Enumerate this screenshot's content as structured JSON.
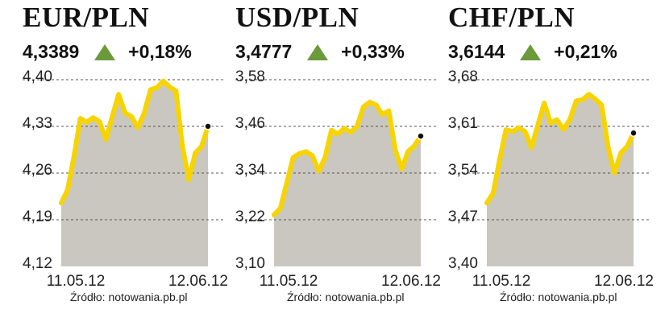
{
  "source_label": "Źródło: notowania.pb.pl",
  "colors": {
    "line": "#f7d400",
    "area": "#c9c7c0",
    "grid": "#555555",
    "arrow_up": "#6a9a3a",
    "dot": "#111111"
  },
  "chart_data": [
    {
      "type": "area",
      "title": "EUR/PLN",
      "quote": {
        "value": "4,3389",
        "direction": "up",
        "change": "+0,18%"
      },
      "x_labels": [
        "11.05.12",
        "12.06.12"
      ],
      "y_ticks": [
        "4,40",
        "4,33",
        "4,26",
        "4,19",
        "4,12"
      ],
      "ylim": [
        4.12,
        4.4
      ],
      "grid": true,
      "x": [
        "11.05.12",
        "14.05.12",
        "15.05.12",
        "16.05.12",
        "17.05.12",
        "18.05.12",
        "21.05.12",
        "22.05.12",
        "23.05.12",
        "24.05.12",
        "25.05.12",
        "28.05.12",
        "29.05.12",
        "30.05.12",
        "31.05.12",
        "01.06.12",
        "04.06.12",
        "05.06.12",
        "06.06.12",
        "07.06.12",
        "08.06.12",
        "11.06.12",
        "12.06.12",
        "13.06.12"
      ],
      "series": [
        {
          "values": [
            4.215,
            4.235,
            4.285,
            4.342,
            4.336,
            4.343,
            4.337,
            4.31,
            4.345,
            4.378,
            4.35,
            4.345,
            4.328,
            4.35,
            4.385,
            4.388,
            4.398,
            4.389,
            4.383,
            4.3,
            4.25,
            4.29,
            4.3,
            4.33
          ]
        }
      ]
    },
    {
      "type": "area",
      "title": "USD/PLN",
      "quote": {
        "value": "3,4777",
        "direction": "up",
        "change": "+0,33%"
      },
      "x_labels": [
        "11.05.12",
        "12.06.12"
      ],
      "y_ticks": [
        "3,58",
        "3,46",
        "3,34",
        "3,22",
        "3,10"
      ],
      "ylim": [
        3.1,
        3.58
      ],
      "grid": true,
      "x": [
        "11.05.12",
        "14.05.12",
        "15.05.12",
        "16.05.12",
        "17.05.12",
        "18.05.12",
        "21.05.12",
        "22.05.12",
        "23.05.12",
        "24.05.12",
        "25.05.12",
        "28.05.12",
        "29.05.12",
        "30.05.12",
        "31.05.12",
        "01.06.12",
        "04.06.12",
        "05.06.12",
        "06.06.12",
        "07.06.12",
        "08.06.12",
        "11.06.12",
        "12.06.12",
        "13.06.12"
      ],
      "series": [
        {
          "values": [
            3.232,
            3.25,
            3.315,
            3.38,
            3.39,
            3.395,
            3.385,
            3.345,
            3.38,
            3.45,
            3.44,
            3.455,
            3.445,
            3.46,
            3.51,
            3.522,
            3.515,
            3.49,
            3.5,
            3.4,
            3.35,
            3.395,
            3.41,
            3.435
          ]
        }
      ]
    },
    {
      "type": "area",
      "title": "CHF/PLN",
      "quote": {
        "value": "3,6144",
        "direction": "up",
        "change": "+0,21%"
      },
      "x_labels": [
        "11.05.12",
        "12.06.12"
      ],
      "y_ticks": [
        "3,68",
        "3,61",
        "3,54",
        "3,47",
        "3,40"
      ],
      "ylim": [
        3.4,
        3.68
      ],
      "grid": true,
      "x": [
        "11.05.12",
        "14.05.12",
        "15.05.12",
        "16.05.12",
        "17.05.12",
        "18.05.12",
        "21.05.12",
        "22.05.12",
        "23.05.12",
        "24.05.12",
        "25.05.12",
        "28.05.12",
        "29.05.12",
        "30.05.12",
        "31.05.12",
        "01.06.12",
        "04.06.12",
        "05.06.12",
        "06.06.12",
        "07.06.12",
        "08.06.12",
        "11.06.12",
        "12.06.12",
        "13.06.12"
      ],
      "series": [
        {
          "values": [
            3.495,
            3.51,
            3.56,
            3.605,
            3.602,
            3.608,
            3.602,
            3.578,
            3.612,
            3.645,
            3.615,
            3.62,
            3.605,
            3.62,
            3.648,
            3.65,
            3.658,
            3.651,
            3.642,
            3.58,
            3.54,
            3.57,
            3.58,
            3.6
          ]
        }
      ]
    }
  ]
}
